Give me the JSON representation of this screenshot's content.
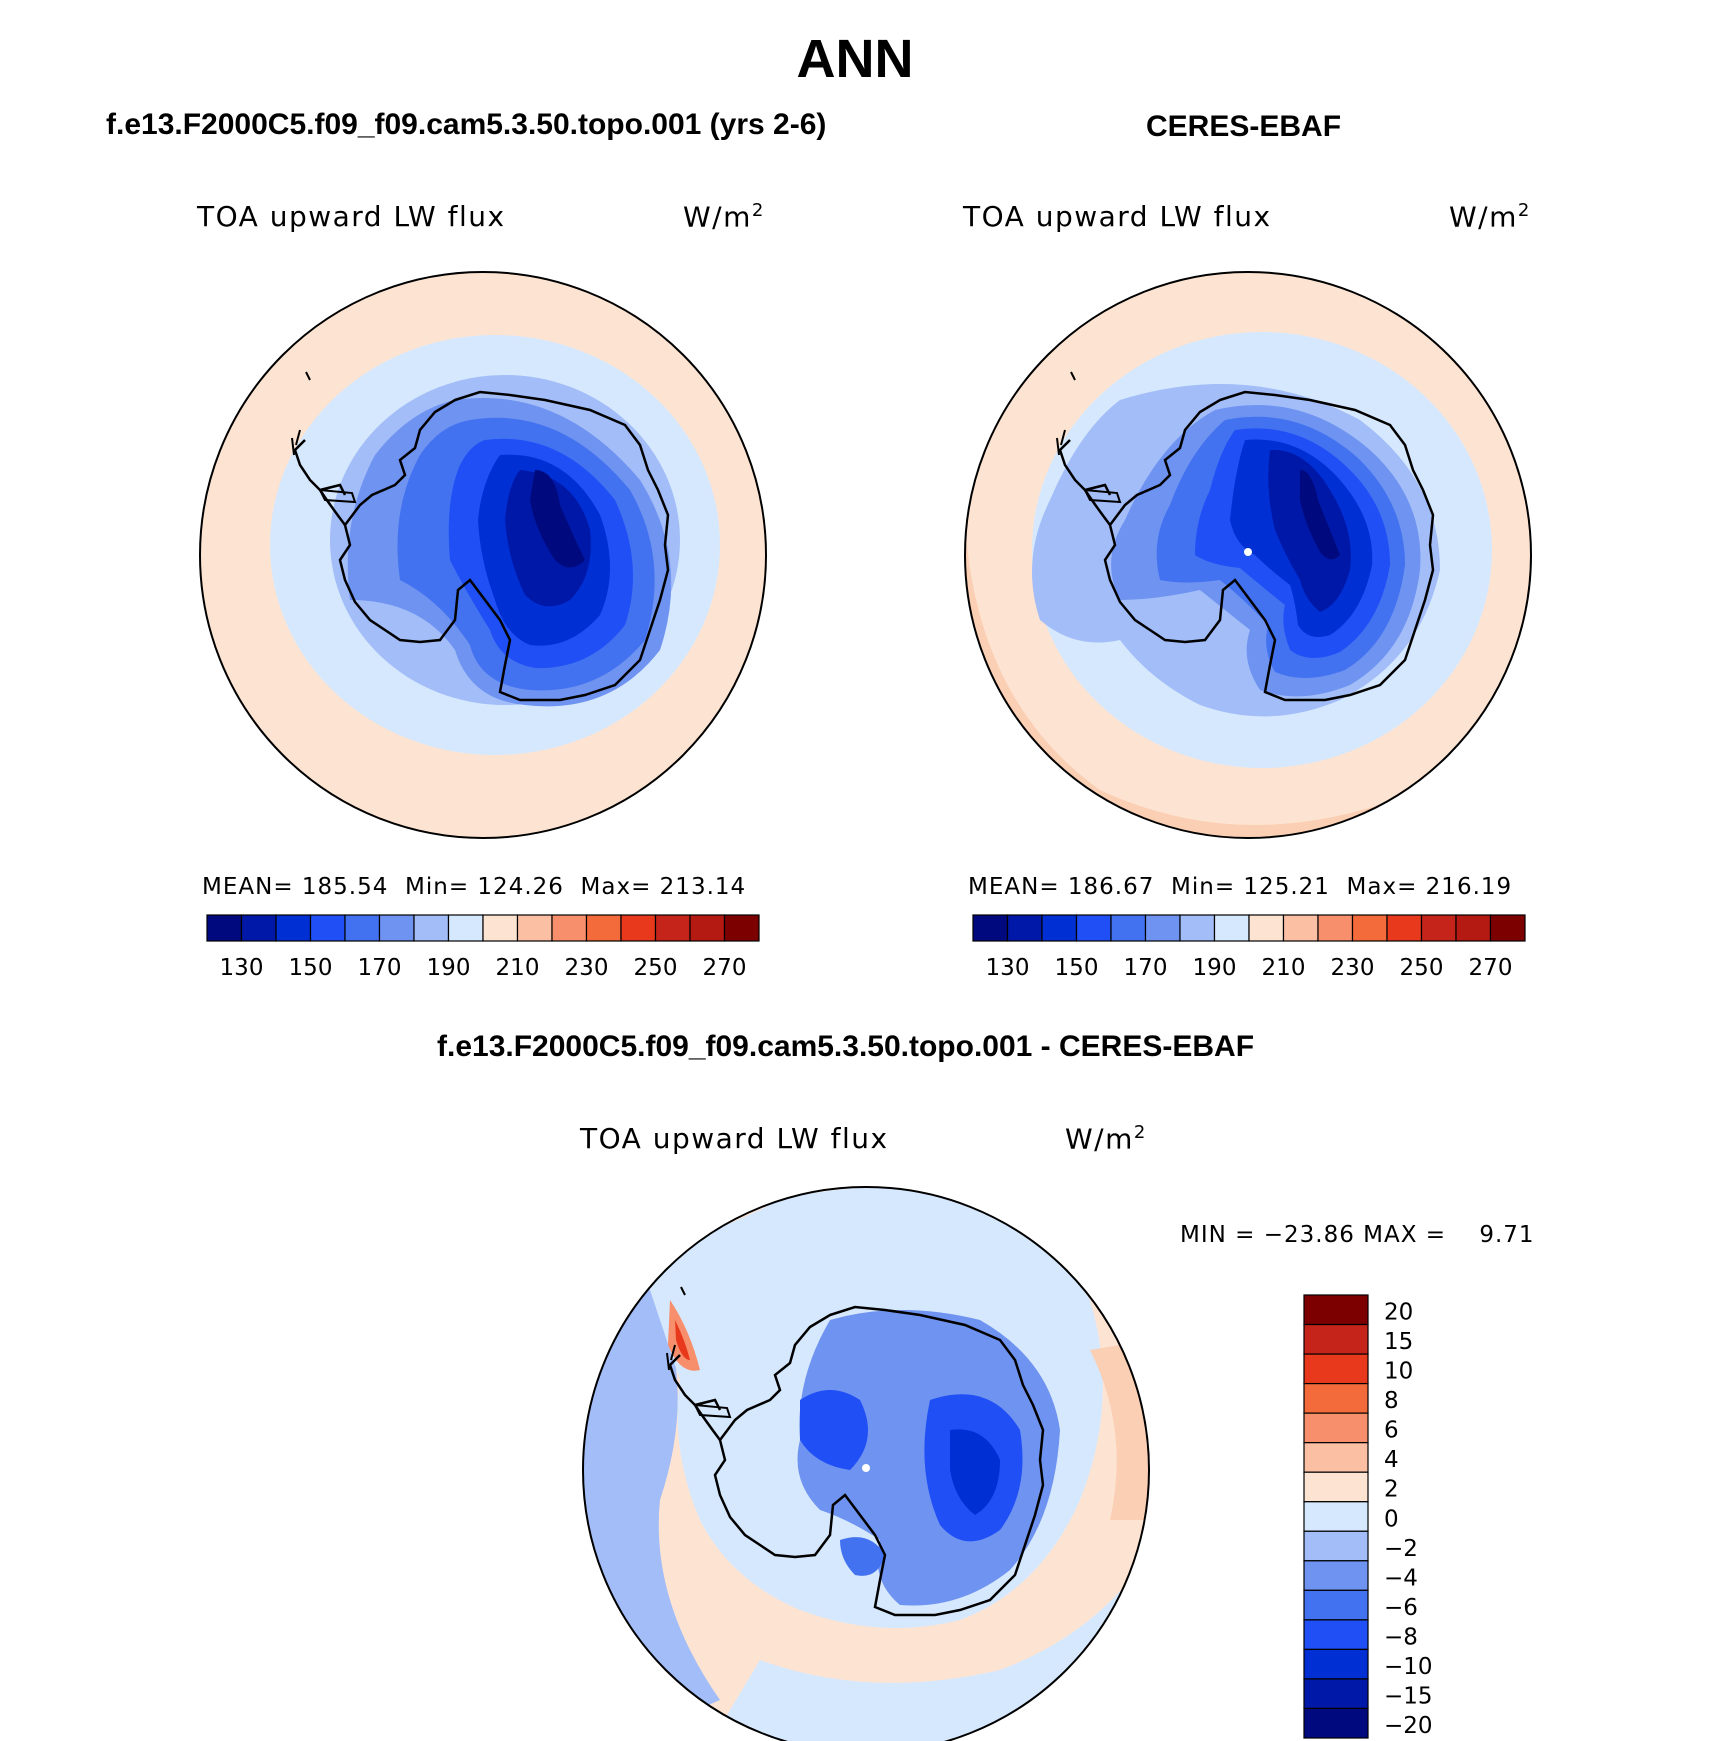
{
  "main_title": "ANN",
  "panels": [
    {
      "title": "f.e13.F2000C5.f09_f09.cam5.3.50.topo.001 (yrs 2-6)",
      "variable": "TOA upward LW flux",
      "units": "W/m",
      "units_exp": "2",
      "stats": {
        "mean_label": "MEAN=",
        "mean": "185.54",
        "min_label": "Min=",
        "min": "124.26",
        "max_label": "Max=",
        "max": "213.14"
      }
    },
    {
      "title": "CERES-EBAF",
      "variable": "TOA upward LW flux",
      "units": "W/m",
      "units_exp": "2",
      "stats": {
        "mean_label": "MEAN=",
        "mean": "186.67",
        "min_label": "Min=",
        "min": "125.21",
        "max_label": "Max=",
        "max": "216.19"
      }
    },
    {
      "title": "f.e13.F2000C5.f09_f09.cam5.3.50.topo.001 - CERES-EBAF",
      "variable": "TOA upward LW flux",
      "units": "W/m",
      "units_exp": "2",
      "stats_text": "MIN = −23.86 MAX =    9.71"
    }
  ],
  "colorbar_h": {
    "colors": [
      "#000a7e",
      "#0018a8",
      "#0030d4",
      "#1f4ff5",
      "#4272f0",
      "#6f93f0",
      "#a2bdf8",
      "#d6e8fd",
      "#fde4d2",
      "#fbbfa4",
      "#f88f6c",
      "#f36b3a",
      "#e8391d",
      "#c5241a",
      "#b51a12",
      "#7c0000"
    ],
    "tick_labels": [
      "130",
      "150",
      "170",
      "190",
      "210",
      "230",
      "250",
      "270"
    ]
  },
  "colorbar_v": {
    "colors": [
      "#000a7e",
      "#0018a8",
      "#0030d4",
      "#1f4ff5",
      "#4272f0",
      "#6f93f0",
      "#a2bdf8",
      "#d6e8fd",
      "#fde4d2",
      "#fbbfa4",
      "#f88f6c",
      "#f36b3a",
      "#e8391d",
      "#c5241a",
      "#7c0000"
    ],
    "tick_labels": [
      "20",
      "15",
      "10",
      "8",
      "6",
      "4",
      "2",
      "0",
      "−2",
      "−4",
      "−6",
      "−8",
      "−10",
      "−15",
      "−20"
    ]
  },
  "chart_data": [
    {
      "type": "heatmap",
      "title": "f.e13.F2000C5.f09_f09.cam5.3.50.topo.001 (yrs 2-6)",
      "variable": "TOA upward LW flux",
      "units": "W/m2",
      "projection": "south-polar-stereographic",
      "mean": 185.54,
      "min": 124.26,
      "max": 213.14,
      "contour_levels": [
        130,
        140,
        150,
        160,
        170,
        180,
        190,
        200,
        210,
        220,
        230,
        240,
        250,
        260,
        270
      ]
    },
    {
      "type": "heatmap",
      "title": "CERES-EBAF",
      "variable": "TOA upward LW flux",
      "units": "W/m2",
      "projection": "south-polar-stereographic",
      "mean": 186.67,
      "min": 125.21,
      "max": 216.19,
      "contour_levels": [
        130,
        140,
        150,
        160,
        170,
        180,
        190,
        200,
        210,
        220,
        230,
        240,
        250,
        260,
        270
      ]
    },
    {
      "type": "heatmap",
      "title": "f.e13.F2000C5.f09_f09.cam5.3.50.topo.001 - CERES-EBAF",
      "variable": "TOA upward LW flux",
      "units": "W/m2",
      "projection": "south-polar-stereographic",
      "min": -23.86,
      "max": 9.71,
      "contour_levels": [
        -20,
        -15,
        -10,
        -8,
        -6,
        -4,
        -2,
        0,
        2,
        4,
        6,
        8,
        10,
        15,
        20
      ]
    }
  ]
}
